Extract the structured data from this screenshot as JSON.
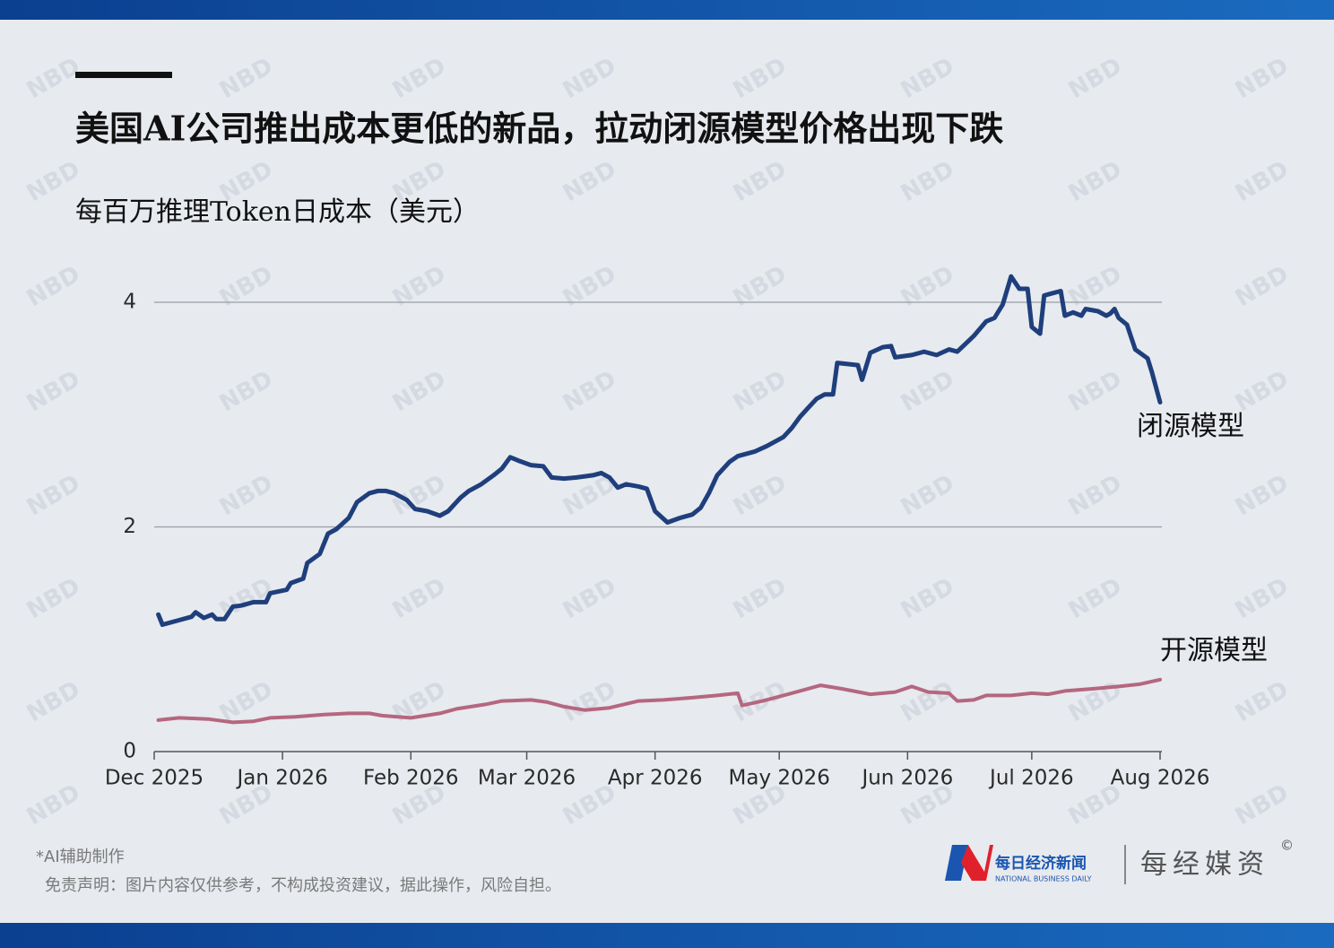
{
  "header": {
    "title": "美国AI公司推出成本更低的新品，拉动闭源模型价格出现下跌",
    "subtitle": "每百万推理Token日成本（美元）"
  },
  "watermark": "NBD",
  "chart_data": {
    "type": "line",
    "xlim": [
      0,
      243
    ],
    "xticks": [
      {
        "value": 0,
        "label": "Dec 2025"
      },
      {
        "value": 31,
        "label": "Jan 2026"
      },
      {
        "value": 62,
        "label": "Feb 2026"
      },
      {
        "value": 90,
        "label": "Mar 2026"
      },
      {
        "value": 121,
        "label": "Apr 2026"
      },
      {
        "value": 151,
        "label": "May 2026"
      },
      {
        "value": 182,
        "label": "Jun 2026"
      },
      {
        "value": 212,
        "label": "Jul 2026"
      },
      {
        "value": 243,
        "label": "Aug 2026"
      }
    ],
    "ylim": [
      0,
      4.3
    ],
    "yticks": [
      0,
      2,
      4
    ],
    "grid": true,
    "series": [
      {
        "name": "闭源模型",
        "color": "#1f3f7c",
        "x": [
          1,
          2,
          6,
          9,
          10,
          12,
          14,
          15,
          17,
          19,
          21,
          24,
          27,
          28,
          32,
          33,
          36,
          37,
          40,
          42,
          44,
          47,
          49,
          52,
          54,
          56,
          58,
          61,
          63,
          66,
          69,
          71,
          74,
          76,
          79,
          82,
          84,
          86,
          88,
          91,
          94,
          96,
          99,
          102,
          106,
          108,
          110,
          112,
          114,
          117,
          119,
          121,
          124,
          127,
          130,
          132,
          134,
          136,
          139,
          141,
          145,
          148,
          151,
          152,
          154,
          156,
          158,
          160,
          162,
          164,
          165,
          170,
          171,
          173,
          176,
          178,
          179,
          183,
          186,
          189,
          192,
          194,
          198,
          201,
          203,
          205,
          207,
          209,
          211,
          212,
          214,
          215,
          216,
          219,
          220,
          222,
          224,
          225,
          228,
          230,
          231,
          232,
          233,
          235,
          237,
          240,
          241,
          243
        ],
        "values": [
          1.22,
          1.13,
          1.17,
          1.2,
          1.24,
          1.19,
          1.22,
          1.18,
          1.18,
          1.29,
          1.3,
          1.33,
          1.33,
          1.41,
          1.44,
          1.5,
          1.54,
          1.68,
          1.76,
          1.94,
          1.98,
          2.08,
          2.22,
          2.3,
          2.32,
          2.32,
          2.3,
          2.24,
          2.16,
          2.14,
          2.1,
          2.14,
          2.26,
          2.32,
          2.38,
          2.46,
          2.52,
          2.62,
          2.59,
          2.55,
          2.54,
          2.44,
          2.43,
          2.44,
          2.46,
          2.48,
          2.44,
          2.35,
          2.38,
          2.36,
          2.34,
          2.14,
          2.04,
          2.08,
          2.11,
          2.17,
          2.3,
          2.46,
          2.58,
          2.63,
          2.67,
          2.72,
          2.78,
          2.8,
          2.88,
          2.98,
          3.06,
          3.14,
          3.18,
          3.18,
          3.46,
          3.44,
          3.31,
          3.55,
          3.6,
          3.61,
          3.51,
          3.53,
          3.56,
          3.53,
          3.58,
          3.56,
          3.7,
          3.83,
          3.86,
          3.98,
          4.23,
          4.12,
          4.12,
          3.78,
          3.72,
          4.06,
          4.07,
          4.1,
          3.88,
          3.91,
          3.88,
          3.94,
          3.92,
          3.88,
          3.9,
          3.94,
          3.86,
          3.8,
          3.58,
          3.5,
          3.38,
          3.11
        ]
      },
      {
        "name": "开源模型",
        "color": "#b5677f",
        "x": [
          1,
          6,
          13,
          19,
          24,
          28,
          34,
          41,
          47,
          52,
          55,
          62,
          69,
          73,
          80,
          84,
          91,
          95,
          99,
          104,
          110,
          117,
          123,
          130,
          136,
          141,
          142,
          147,
          152,
          156,
          161,
          166,
          173,
          179,
          183,
          187,
          192,
          194,
          198,
          201,
          207,
          212,
          216,
          220,
          227,
          233,
          238,
          243
        ],
        "values": [
          0.28,
          0.3,
          0.29,
          0.26,
          0.27,
          0.3,
          0.31,
          0.33,
          0.34,
          0.34,
          0.32,
          0.3,
          0.34,
          0.38,
          0.42,
          0.45,
          0.46,
          0.44,
          0.4,
          0.37,
          0.39,
          0.45,
          0.46,
          0.48,
          0.5,
          0.52,
          0.41,
          0.45,
          0.5,
          0.54,
          0.59,
          0.56,
          0.51,
          0.53,
          0.58,
          0.53,
          0.52,
          0.45,
          0.46,
          0.5,
          0.5,
          0.52,
          0.51,
          0.54,
          0.56,
          0.58,
          0.6,
          0.64
        ]
      }
    ]
  },
  "footer": {
    "note": "*AI辅助制作",
    "disclaimer": "免责声明：图片内容仅供参考，不构成投资建议，据此操作，风险自担。",
    "logo_cn": "每日经济新闻",
    "logo_en": "NATIONAL BUSINESS DAILY",
    "brand": "每经媒资",
    "copyright": "©"
  }
}
